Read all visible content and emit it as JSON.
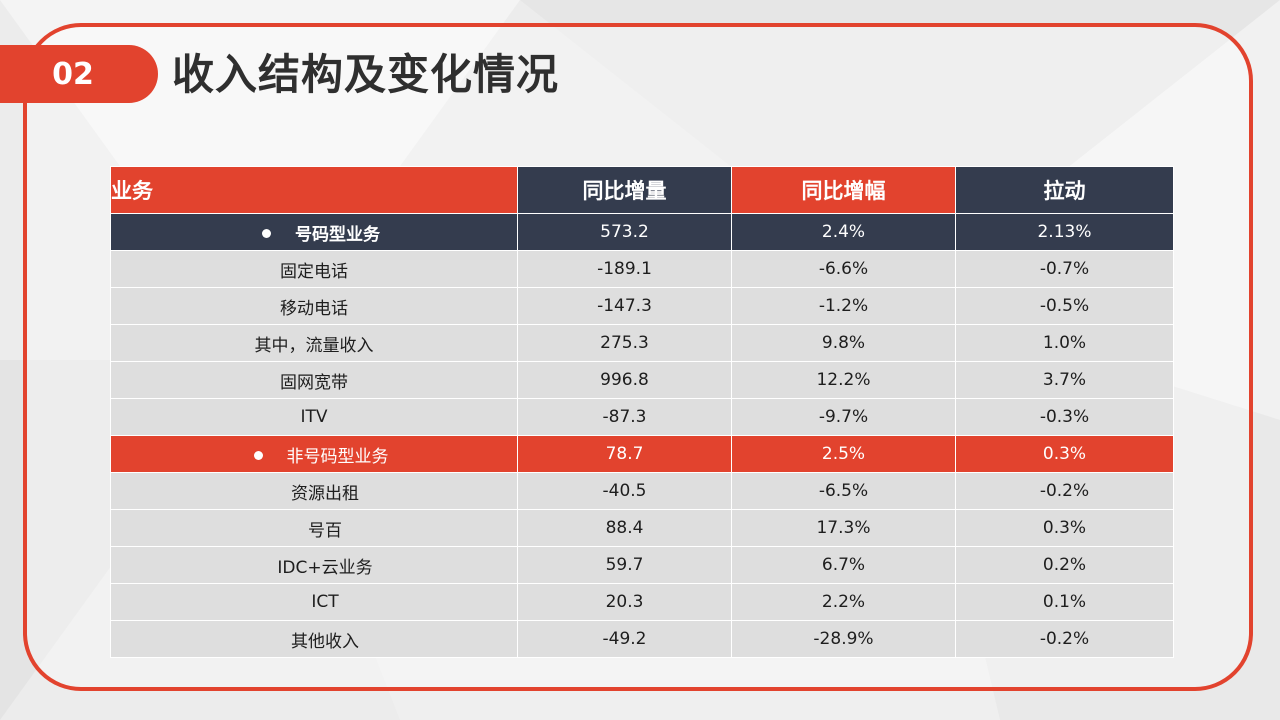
{
  "section_number": "02",
  "title": "收入结构及变化情况",
  "table": {
    "headers": [
      "业务",
      "同比增量",
      "同比增幅",
      "拉动"
    ],
    "rows": [
      {
        "label": "号码型业务",
        "increase": "573.2",
        "growth": "2.4%",
        "pull": "2.13%",
        "type": "category-dark"
      },
      {
        "label": "固定电话",
        "increase": "-189.1",
        "growth": "-6.6%",
        "pull": "-0.7%",
        "type": "item"
      },
      {
        "label": "移动电话",
        "increase": "-147.3",
        "growth": "-1.2%",
        "pull": "-0.5%",
        "type": "item"
      },
      {
        "label": "其中，流量收入",
        "increase": "275.3",
        "growth": "9.8%",
        "pull": "1.0%",
        "type": "item"
      },
      {
        "label": "固网宽带",
        "increase": "996.8",
        "growth": "12.2%",
        "pull": "3.7%",
        "type": "item"
      },
      {
        "label": "ITV",
        "increase": "-87.3",
        "growth": "-9.7%",
        "pull": "-0.3%",
        "type": "item"
      },
      {
        "label": "非号码型业务",
        "increase": "78.7",
        "growth": "2.5%",
        "pull": "0.3%",
        "type": "category-red"
      },
      {
        "label": "资源出租",
        "increase": "-40.5",
        "growth": "-6.5%",
        "pull": "-0.2%",
        "type": "subitem"
      },
      {
        "label": "号百",
        "increase": "88.4",
        "growth": "17.3%",
        "pull": "0.3%",
        "type": "subitem"
      },
      {
        "label": "IDC+云业务",
        "increase": "59.7",
        "growth": "6.7%",
        "pull": "0.2%",
        "type": "subitem"
      },
      {
        "label": "ICT",
        "increase": "20.3",
        "growth": "2.2%",
        "pull": "0.1%",
        "type": "subitem"
      },
      {
        "label": "其他收入",
        "increase": "-49.2",
        "growth": "-28.9%",
        "pull": "-0.2%",
        "type": "subitem"
      }
    ]
  },
  "colors": {
    "accent_red": "#e2432e",
    "header_dark": "#343c4e",
    "row_gray": "#dedede"
  }
}
